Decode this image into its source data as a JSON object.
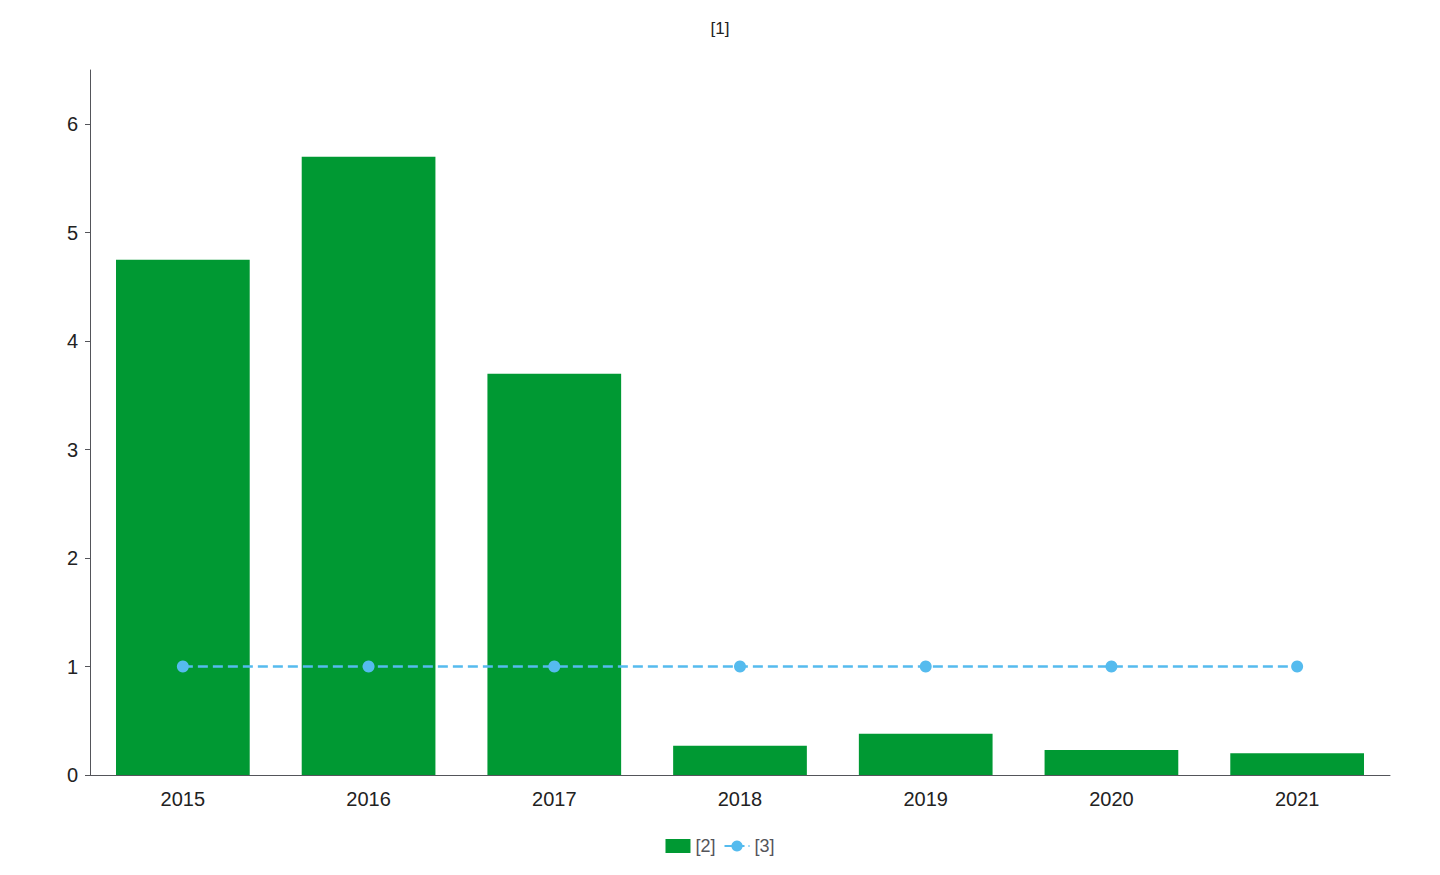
{
  "chart_data": {
    "type": "bar",
    "title": "[1]",
    "categories": [
      "2015",
      "2016",
      "2017",
      "2018",
      "2019",
      "2020",
      "2021"
    ],
    "series": [
      {
        "name": "[2]",
        "type": "bar",
        "color": "#009933",
        "values": [
          4.75,
          5.7,
          3.7,
          0.27,
          0.38,
          0.23,
          0.2
        ]
      },
      {
        "name": "[3]",
        "type": "line",
        "color": "#55bbee",
        "line_style": "dashed",
        "marker": "circle",
        "values": [
          1.0,
          1.0,
          1.0,
          1.0,
          1.0,
          1.0,
          1.0
        ]
      }
    ],
    "ylim": [
      0,
      6.5
    ],
    "yticks": [
      0,
      1,
      2,
      3,
      4,
      5,
      6
    ],
    "grid": false,
    "legend": "bottom"
  }
}
